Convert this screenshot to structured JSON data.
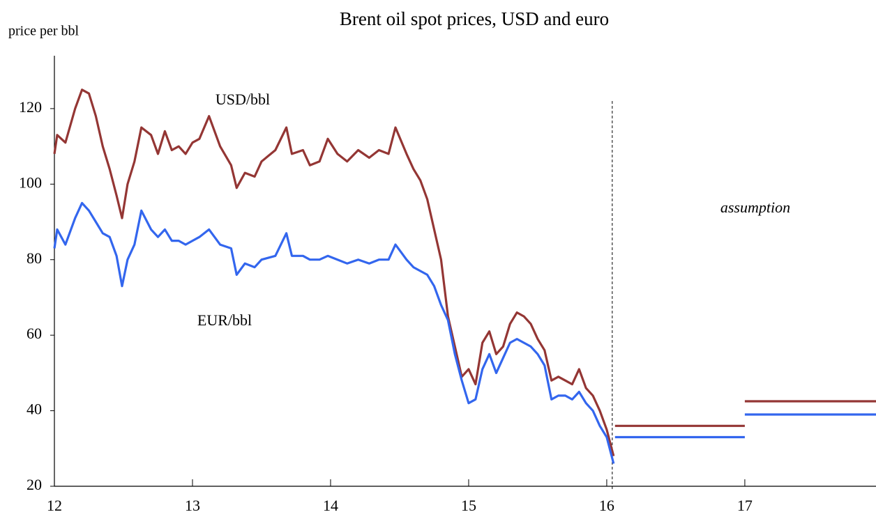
{
  "chart_data": {
    "type": "line",
    "title": "Brent oil spot prices, USD and euro",
    "y_label": "price per bbl",
    "annotation": "assumption",
    "x": [
      12.0,
      12.02,
      12.08,
      12.15,
      12.2,
      12.25,
      12.3,
      12.35,
      12.4,
      12.45,
      12.49,
      12.53,
      12.58,
      12.63,
      12.7,
      12.75,
      12.8,
      12.85,
      12.9,
      12.95,
      13.0,
      13.05,
      13.12,
      13.2,
      13.28,
      13.32,
      13.38,
      13.45,
      13.5,
      13.6,
      13.68,
      13.72,
      13.8,
      13.85,
      13.92,
      13.98,
      14.05,
      14.12,
      14.2,
      14.28,
      14.35,
      14.42,
      14.47,
      14.55,
      14.6,
      14.65,
      14.7,
      14.75,
      14.8,
      14.85,
      14.9,
      14.95,
      15.0,
      15.05,
      15.1,
      15.15,
      15.2,
      15.25,
      15.3,
      15.35,
      15.4,
      15.45,
      15.5,
      15.55,
      15.6,
      15.65,
      15.7,
      15.75,
      15.8,
      15.85,
      15.9,
      15.95,
      16.0,
      16.05,
      16.055,
      16.06,
      17,
      17,
      17,
      17.95
    ],
    "series": [
      {
        "name": "USD/bbl",
        "color": "#943634",
        "values": [
          108,
          113,
          111,
          120,
          125,
          124,
          118,
          110,
          104,
          97,
          91,
          100,
          106,
          115,
          113,
          108,
          114,
          109,
          110,
          108,
          111,
          112,
          118,
          110,
          105,
          99,
          103,
          102,
          106,
          109,
          115,
          108,
          109,
          105,
          106,
          112,
          108,
          106,
          109,
          107,
          109,
          108,
          115,
          108,
          104,
          101,
          96,
          88,
          80,
          65,
          57,
          49,
          51,
          47,
          58,
          61,
          55,
          57,
          63,
          66,
          65,
          63,
          59,
          56,
          48,
          49,
          48,
          47,
          51,
          46,
          44,
          40,
          35,
          28,
          null,
          36,
          36,
          null,
          42.5,
          42.5
        ]
      },
      {
        "name": "EUR/bbl",
        "color": "#3366ee",
        "values": [
          83,
          88,
          84,
          91,
          95,
          93,
          90,
          87,
          86,
          81,
          73,
          80,
          84,
          93,
          88,
          86,
          88,
          85,
          85,
          84,
          85,
          86,
          88,
          84,
          83,
          76,
          79,
          78,
          80,
          81,
          87,
          81,
          81,
          80,
          80,
          81,
          80,
          79,
          80,
          79,
          80,
          80,
          84,
          80,
          78,
          77,
          76,
          73,
          68,
          64,
          55,
          48,
          42,
          43,
          51,
          55,
          50,
          54,
          58,
          59,
          58,
          57,
          55,
          52,
          43,
          44,
          44,
          43,
          45,
          42,
          40,
          36,
          33,
          26,
          null,
          33,
          33,
          null,
          39,
          39
        ]
      }
    ],
    "xlim": [
      12,
      17.95
    ],
    "xticks": [
      12,
      13,
      14,
      15,
      16,
      17
    ],
    "ylim": [
      20,
      134
    ],
    "yticks": [
      20,
      40,
      60,
      80,
      100,
      120
    ],
    "vline": 16.04,
    "grid": false
  }
}
